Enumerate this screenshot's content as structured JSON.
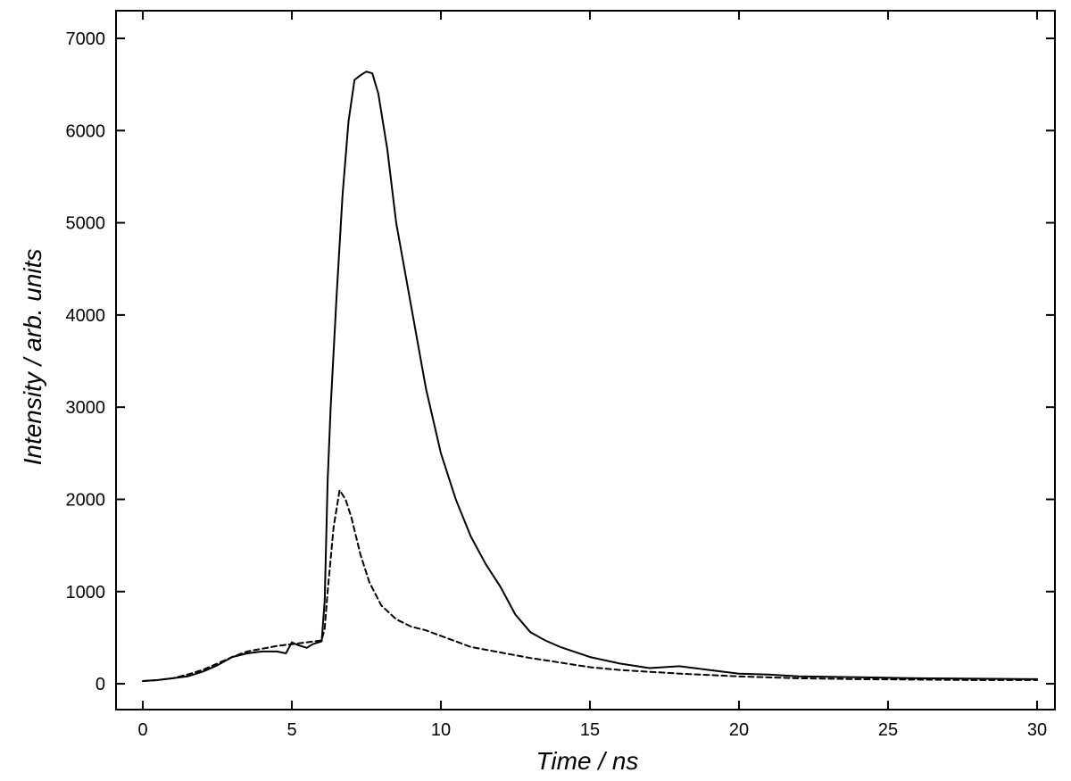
{
  "chart_data": {
    "type": "line",
    "xlabel": "Time / ns",
    "ylabel": "Intensity / arb. units",
    "xlim": [
      -0.9,
      30.6
    ],
    "ylim": [
      -280,
      7300
    ],
    "x_ticks": [
      0,
      5,
      10,
      15,
      20,
      25,
      30
    ],
    "y_ticks": [
      0,
      1000,
      2000,
      3000,
      4000,
      5000,
      6000,
      7000
    ],
    "grid": false,
    "legend": "none",
    "series": [
      {
        "style": "solid",
        "color": "#000000",
        "x": [
          0,
          0.5,
          1,
          1.5,
          2,
          2.5,
          3,
          3.5,
          4,
          4.5,
          4.8,
          5,
          5.2,
          5.5,
          5.7,
          6,
          6.1,
          6.2,
          6.3,
          6.5,
          6.7,
          6.9,
          7.1,
          7.3,
          7.5,
          7.7,
          7.9,
          8.2,
          8.5,
          9,
          9.5,
          10,
          10.5,
          11,
          11.5,
          12,
          12.5,
          13,
          13.5,
          14,
          15,
          16,
          17,
          18,
          19,
          20,
          21,
          22,
          24,
          26,
          28,
          30
        ],
        "y": [
          30,
          40,
          60,
          80,
          130,
          200,
          290,
          330,
          350,
          350,
          330,
          450,
          420,
          390,
          430,
          460,
          900,
          2200,
          3000,
          4200,
          5300,
          6100,
          6550,
          6600,
          6640,
          6620,
          6400,
          5800,
          5000,
          4100,
          3200,
          2500,
          2000,
          1600,
          1300,
          1050,
          750,
          560,
          470,
          400,
          290,
          220,
          170,
          190,
          150,
          110,
          100,
          80,
          70,
          60,
          55,
          50
        ]
      },
      {
        "style": "dashed",
        "color": "#000000",
        "x": [
          0,
          0.5,
          1,
          1.5,
          2,
          2.5,
          3,
          3.5,
          4,
          4.5,
          5,
          5.5,
          6,
          6.1,
          6.2,
          6.4,
          6.6,
          6.8,
          7,
          7.3,
          7.6,
          8,
          8.5,
          9,
          9.5,
          10,
          10.5,
          11,
          11.5,
          12,
          13,
          14,
          15,
          16,
          18,
          20,
          22,
          24,
          26,
          28,
          30
        ],
        "y": [
          30,
          40,
          60,
          100,
          150,
          220,
          290,
          350,
          380,
          410,
          430,
          450,
          470,
          600,
          1000,
          1700,
          2100,
          2000,
          1800,
          1400,
          1100,
          850,
          700,
          620,
          580,
          520,
          460,
          400,
          370,
          340,
          280,
          230,
          180,
          150,
          110,
          80,
          60,
          50,
          45,
          40,
          40
        ]
      }
    ]
  }
}
